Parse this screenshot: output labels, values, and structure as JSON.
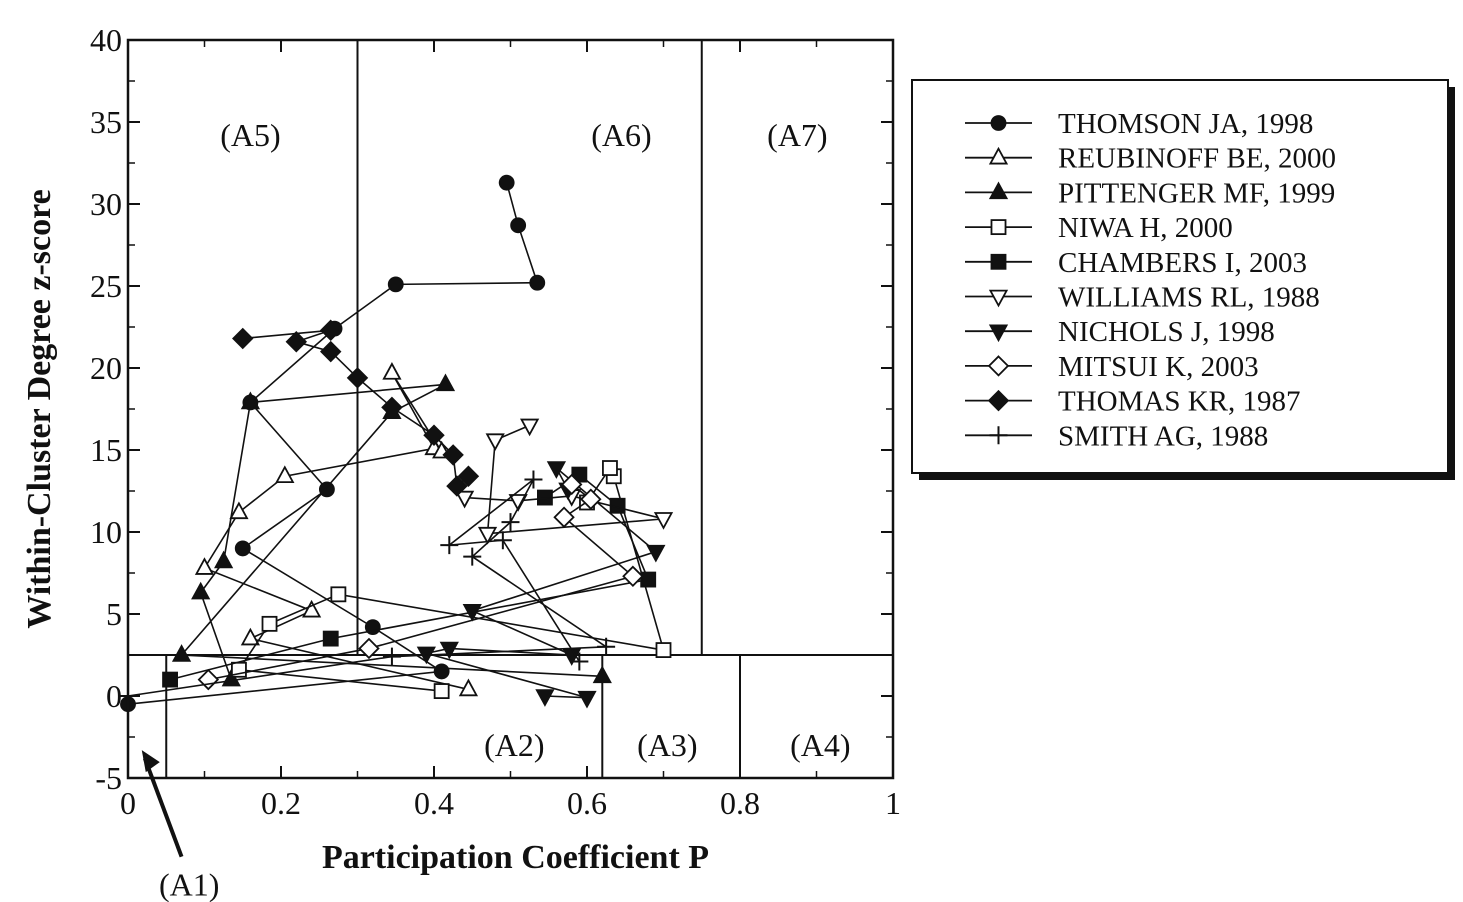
{
  "chart_data": {
    "type": "line",
    "xlabel": "Participation Coefficient P",
    "ylabel": "Within-Cluster Degree z-score",
    "xlim": [
      0,
      1
    ],
    "ylim": [
      -5,
      40
    ],
    "x_ticks": [
      0,
      0.2,
      0.4,
      0.6,
      0.8,
      1
    ],
    "x_tick_labels": [
      "0",
      "0.2",
      "0.4",
      "0.6",
      "0.8",
      "1"
    ],
    "y_ticks": [
      -5,
      0,
      5,
      10,
      15,
      20,
      25,
      30,
      35,
      40
    ],
    "y_tick_labels": [
      "-5",
      "0",
      "5",
      "10",
      "15",
      "20",
      "25",
      "30",
      "35",
      "40"
    ],
    "grid": false,
    "legend_position": "right",
    "region_boundaries": {
      "hub_z_threshold": 2.5,
      "nonhub_p_boundaries": [
        0.05,
        0.62,
        0.8
      ],
      "hub_p_boundaries": [
        0.3,
        0.75
      ]
    },
    "regions": [
      {
        "label": "(A1)",
        "x": 0.08,
        "y": -11.5
      },
      {
        "label": "(A2)",
        "x": 0.505,
        "y": -3
      },
      {
        "label": "(A3)",
        "x": 0.705,
        "y": -3
      },
      {
        "label": "(A4)",
        "x": 0.905,
        "y": -3
      },
      {
        "label": "(A5)",
        "x": 0.16,
        "y": 34.2
      },
      {
        "label": "(A6)",
        "x": 0.645,
        "y": 34.2
      },
      {
        "label": "(A7)",
        "x": 0.875,
        "y": 34.2
      }
    ],
    "series": [
      {
        "name": "THOMSON JA, 1998",
        "marker": "circle",
        "filled": true,
        "x": [
          0.0,
          0.41,
          0.32,
          0.15,
          0.26,
          0.16,
          0.27,
          0.35,
          0.535,
          0.51,
          0.495
        ],
        "y": [
          -0.5,
          1.5,
          4.2,
          9.0,
          12.6,
          17.9,
          22.4,
          25.1,
          25.2,
          28.7,
          31.3
        ]
      },
      {
        "name": "REUBINOFF BE, 2000",
        "marker": "triangle-up",
        "filled": false,
        "x": [
          0.445,
          0.16,
          0.24,
          0.1,
          0.145,
          0.205,
          0.4,
          0.345,
          0.41
        ],
        "y": [
          0.4,
          3.5,
          5.2,
          7.8,
          11.2,
          13.4,
          15.1,
          19.7,
          14.9
        ]
      },
      {
        "name": "PITTENGER MF, 1999",
        "marker": "triangle-up",
        "filled": true,
        "x": [
          0.135,
          0.095,
          0.125,
          0.16,
          0.415,
          0.345,
          0.07,
          0.62
        ],
        "y": [
          1.0,
          6.3,
          8.2,
          17.9,
          19.0,
          17.3,
          2.5,
          1.2
        ]
      },
      {
        "name": "NIWA H, 2000",
        "marker": "square",
        "filled": false,
        "x": [
          0.41,
          0.145,
          0.185,
          0.275,
          0.7,
          0.635,
          0.63,
          0.6
        ],
        "y": [
          0.3,
          1.6,
          4.4,
          6.2,
          2.8,
          13.4,
          13.9,
          11.8
        ]
      },
      {
        "name": "CHAMBERS I, 2003",
        "marker": "square",
        "filled": true,
        "x": [
          0.055,
          0.265,
          0.68,
          0.64,
          0.59,
          0.545
        ],
        "y": [
          1.0,
          3.5,
          7.1,
          11.6,
          13.5,
          12.1
        ]
      },
      {
        "name": "WILLIAMS RL, 1988",
        "marker": "triangle-down",
        "filled": false,
        "x": [
          0.44,
          0.51,
          0.58,
          0.7,
          0.47,
          0.48,
          0.525
        ],
        "y": [
          12.1,
          11.9,
          12.2,
          10.8,
          9.9,
          15.6,
          16.5
        ]
      },
      {
        "name": "NICHOLS J, 1998",
        "marker": "triangle-down",
        "filled": true,
        "x": [
          0.545,
          0.6,
          0.39,
          0.42,
          0.58,
          0.45,
          0.69,
          0.56,
          0.575
        ],
        "y": [
          0.0,
          -0.1,
          2.6,
          2.9,
          2.5,
          5.2,
          8.8,
          13.9,
          12.6
        ]
      },
      {
        "name": "MITSUI K, 2003",
        "marker": "diamond",
        "filled": false,
        "x": [
          0.105,
          0.315,
          0.66,
          0.57,
          0.605,
          0.58
        ],
        "y": [
          1.0,
          2.9,
          7.3,
          10.9,
          12.0,
          12.9
        ]
      },
      {
        "name": "THOMAS KR, 1987",
        "marker": "diamond",
        "filled": true,
        "x": [
          0.15,
          0.265,
          0.22,
          0.265,
          0.3,
          0.345,
          0.4,
          0.425,
          0.43,
          0.445
        ],
        "y": [
          21.8,
          22.3,
          21.6,
          21.0,
          19.4,
          17.6,
          15.9,
          14.7,
          12.8,
          13.4
        ]
      },
      {
        "name": "SMITH AG, 1988",
        "marker": "plus",
        "filled": false,
        "x": [
          0.0,
          0.345,
          0.625,
          0.45,
          0.5,
          0.53,
          0.42,
          0.49,
          0.59
        ],
        "y": [
          0.0,
          2.4,
          3.0,
          8.5,
          10.6,
          13.2,
          9.2,
          9.5,
          2.1
        ]
      }
    ]
  }
}
